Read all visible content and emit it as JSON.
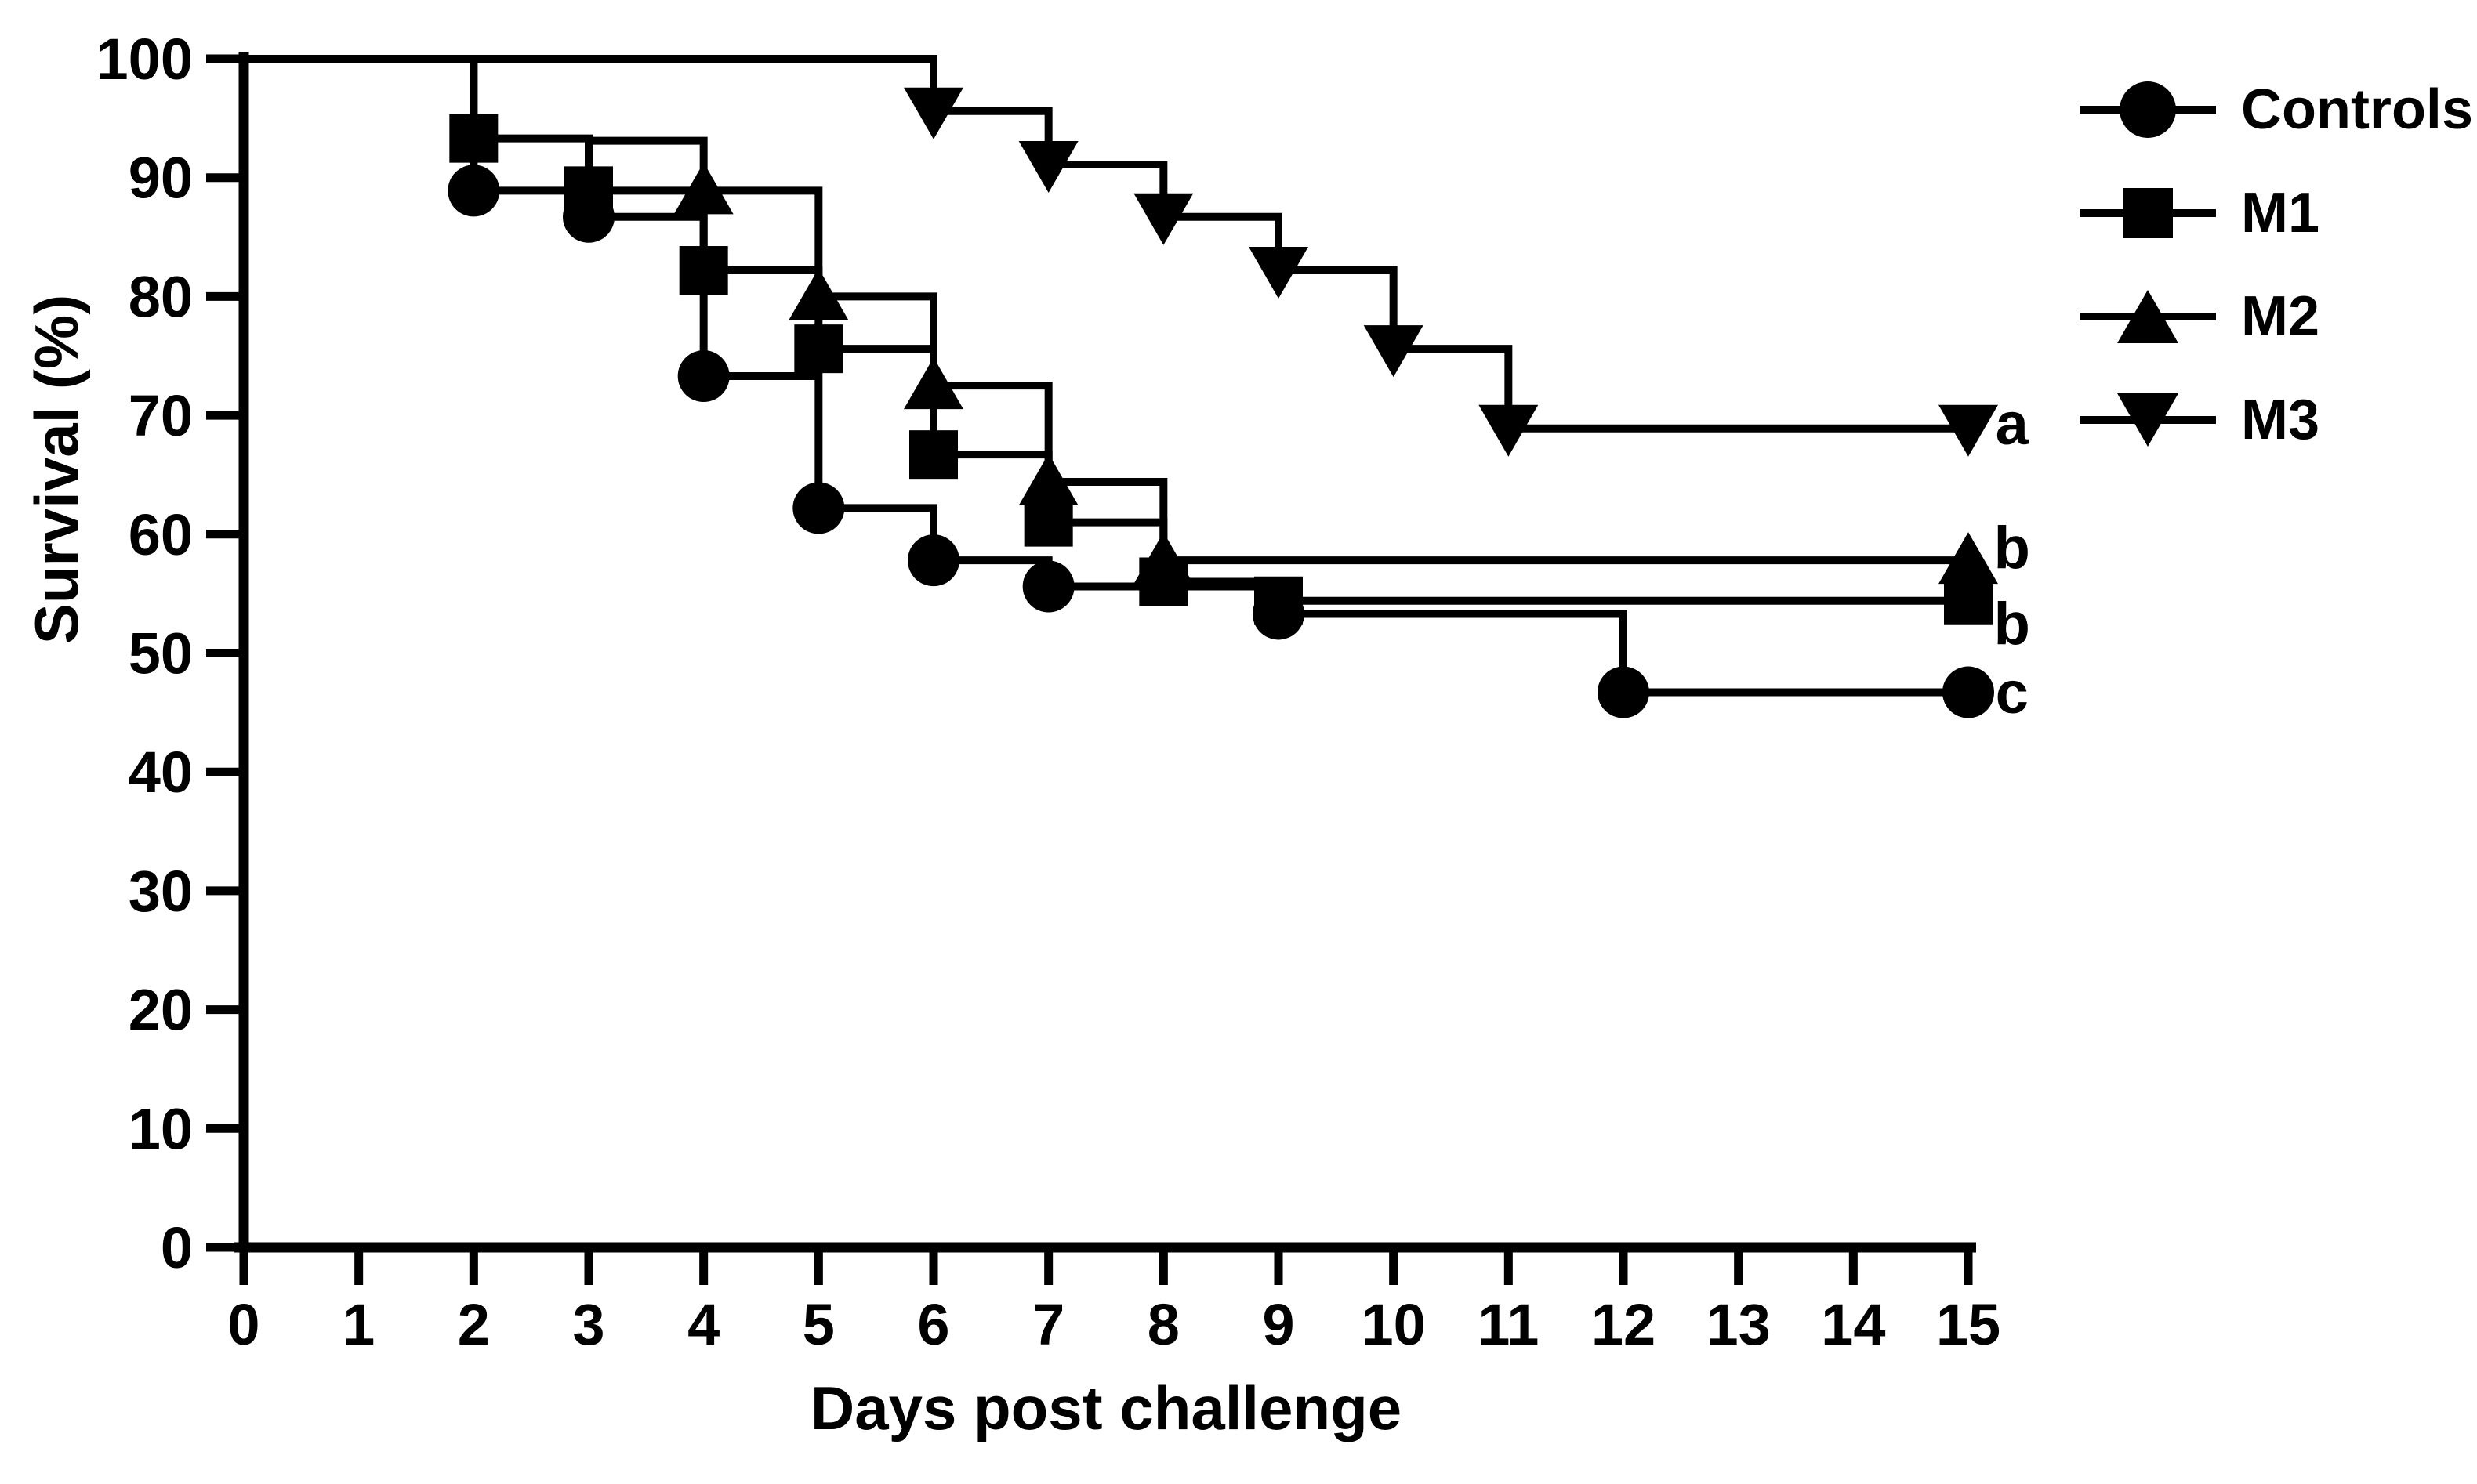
{
  "figure": {
    "background_color": "#ffffff",
    "ink_color": "#000000"
  },
  "chart_data": {
    "type": "line",
    "subtype": "kaplan_meier_survival_steps",
    "title": "",
    "xlabel": "Days post challenge",
    "ylabel": "Survival (%)",
    "xlim": [
      0,
      15
    ],
    "ylim": [
      0,
      100
    ],
    "x_ticks": [
      0,
      1,
      2,
      3,
      4,
      5,
      6,
      7,
      8,
      9,
      10,
      11,
      12,
      13,
      14,
      15
    ],
    "y_ticks": [
      0,
      10,
      20,
      30,
      40,
      50,
      60,
      70,
      80,
      90,
      100
    ],
    "grid": false,
    "legend_position": "top-right",
    "series": [
      {
        "name": "Controls",
        "marker": "circle",
        "end_label": "c",
        "points": [
          [
            0,
            100
          ],
          [
            2,
            88.9
          ],
          [
            3,
            86.7
          ],
          [
            4,
            73.3
          ],
          [
            5,
            62.2
          ],
          [
            6,
            57.8
          ],
          [
            7,
            55.6
          ],
          [
            9,
            53.3
          ],
          [
            12,
            46.7
          ]
        ],
        "marker_days": [
          2,
          3,
          4,
          5,
          6,
          7,
          9,
          12,
          15
        ]
      },
      {
        "name": "M1",
        "marker": "square",
        "end_label": "b",
        "points": [
          [
            0,
            100
          ],
          [
            2,
            93.3
          ],
          [
            3,
            88.9
          ],
          [
            4,
            82.2
          ],
          [
            5,
            75.6
          ],
          [
            6,
            66.7
          ],
          [
            7,
            61.0
          ],
          [
            8,
            56.0
          ],
          [
            9,
            54.4
          ]
        ],
        "marker_days": [
          2,
          3,
          4,
          5,
          6,
          7,
          8,
          9,
          15
        ]
      },
      {
        "name": "M2",
        "marker": "triangle-up",
        "end_label": "b",
        "points": [
          [
            3,
            93.1
          ],
          [
            4,
            88.9
          ],
          [
            5,
            80.0
          ],
          [
            6,
            72.5
          ],
          [
            7,
            64.4
          ],
          [
            8,
            57.8
          ]
        ],
        "marker_days": [
          4,
          5,
          6,
          7,
          8,
          15
        ]
      },
      {
        "name": "M3",
        "marker": "triangle-down",
        "end_label": "a",
        "points": [
          [
            0,
            100
          ],
          [
            6,
            95.6
          ],
          [
            7,
            91.1
          ],
          [
            8,
            86.7
          ],
          [
            9,
            82.2
          ],
          [
            10,
            75.6
          ],
          [
            11,
            68.9
          ]
        ],
        "marker_days": [
          6,
          7,
          8,
          9,
          10,
          11,
          15
        ]
      }
    ],
    "annotations": [
      {
        "text": "a",
        "day": 15.38,
        "value": 69.2
      },
      {
        "text": "b",
        "day": 15.38,
        "value": 58.8
      },
      {
        "text": "b",
        "day": 15.38,
        "value": 52.4
      },
      {
        "text": "c",
        "day": 15.38,
        "value": 46.6
      }
    ]
  }
}
